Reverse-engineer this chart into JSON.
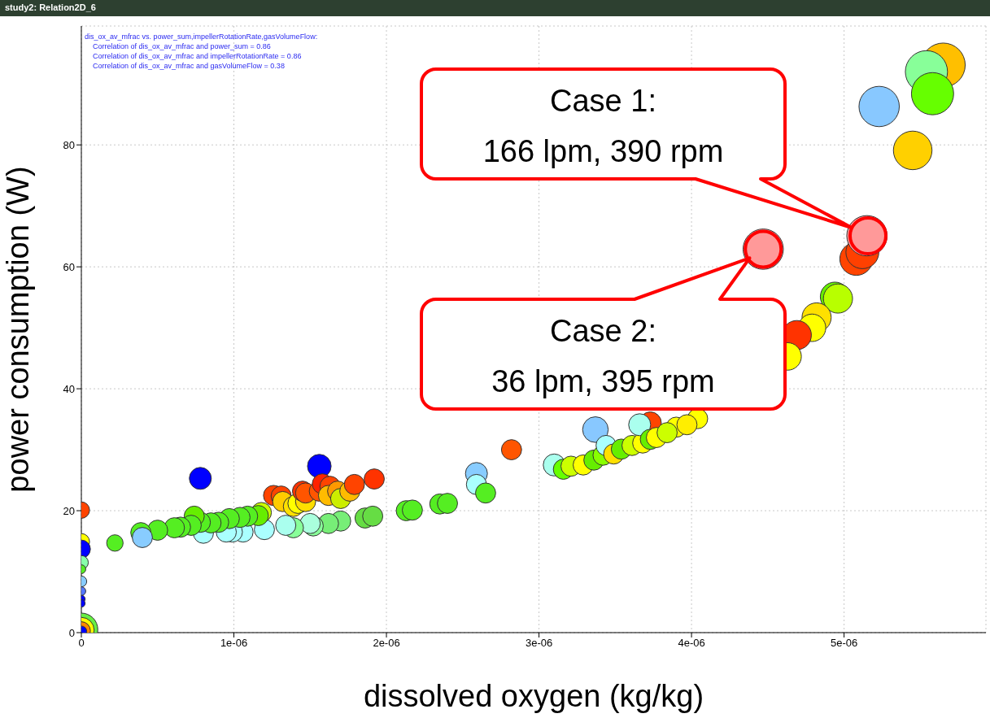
{
  "chart_data": {
    "type": "bubble",
    "title": "study2: Relation2D_6",
    "xlabel": "dissolved oxygen (kg/kg)",
    "ylabel": "power consumption (W)",
    "xlim": [
      0,
      5.93e-06
    ],
    "ylim": [
      0,
      99.5
    ],
    "xticks": [
      0,
      {
        "value": 1e-06,
        "label": "1e-06"
      },
      {
        "value": 2e-06,
        "label": "2e-06"
      },
      {
        "value": 3e-06,
        "label": "3e-06"
      },
      {
        "value": 4e-06,
        "label": "4e-06"
      },
      {
        "value": 5e-06,
        "label": "5e-06"
      }
    ],
    "yticks": [
      0,
      20,
      40,
      60,
      80
    ],
    "grid": true,
    "marker": "circle",
    "x": [
      5.65e-06,
      5.54e-06,
      5.58e-06,
      5.23e-06,
      5.45e-06,
      5.08e-06,
      5.12e-06,
      4.94e-06,
      4.96e-06,
      4.82e-06,
      4.79e-06,
      4.69e-06,
      4.63e-06,
      3.37e-06,
      4.04e-06,
      3.73e-06,
      3.9e-06,
      3.1e-06,
      3.16e-06,
      3.21e-06,
      3.29e-06,
      3.36e-06,
      3.42e-06,
      3.44e-06,
      3.49e-06,
      3.54e-06,
      3.61e-06,
      3.68e-06,
      3.66e-06,
      3.73e-06,
      3.77e-06,
      3.84e-06,
      3.97e-06,
      7.8e-07,
      1.56e-06,
      1.92e-06,
      2.82e-06,
      2.59e-06,
      2.59e-06,
      2.65e-06,
      2.35e-06,
      2.4e-06,
      2.13e-06,
      2.17e-06,
      1.86e-06,
      1.91e-06,
      1.7e-06,
      1.62e-06,
      1.52e-06,
      1.5e-06,
      1.39e-06,
      1.34e-06,
      1.2e-06,
      1.06e-06,
      9.9e-07,
      9.5e-07,
      8e-07,
      1.18e-06,
      1.16e-06,
      1.09e-06,
      1.04e-06,
      9.7e-07,
      9e-07,
      8.5e-07,
      7.8e-07,
      7.4e-07,
      7.2e-07,
      6.5e-07,
      6.1e-07,
      5e-07,
      3.9e-07,
      4e-07,
      2.2e-07,
      1.26e-06,
      1.31e-06,
      1.32e-06,
      1.39e-06,
      1.42e-06,
      1.47e-06,
      1.45e-06,
      1.47e-06,
      1.56e-06,
      1.58e-06,
      1.63e-06,
      1.62e-06,
      1.68e-06,
      1.7e-06,
      1.76e-06,
      1.79e-06,
      0,
      0,
      0,
      0,
      0,
      0,
      0,
      0,
      0,
      0,
      0,
      0,
      0,
      5.15e-06,
      4.47e-06
    ],
    "values": [
      93.1,
      92.0,
      88.4,
      86.3,
      79.1,
      61.3,
      62.4,
      55.1,
      54.8,
      51.7,
      50.0,
      48.8,
      45.3,
      33.3,
      35.1,
      34.4,
      33.7,
      27.5,
      26.8,
      27.3,
      27.5,
      28.3,
      29.1,
      30.7,
      29.3,
      30.1,
      30.7,
      31.1,
      34.1,
      31.7,
      32.0,
      32.8,
      34.1,
      25.3,
      27.3,
      25.2,
      30.0,
      26.1,
      24.3,
      22.9,
      21.1,
      21.2,
      20.0,
      20.1,
      18.8,
      19.1,
      18.3,
      17.9,
      17.5,
      17.9,
      17.2,
      17.6,
      16.9,
      16.5,
      16.5,
      16.5,
      16.3,
      19.7,
      19.2,
      19.1,
      18.9,
      18.7,
      18.1,
      18.0,
      18.1,
      19.1,
      17.6,
      17.3,
      17.2,
      16.8,
      16.4,
      15.6,
      14.7,
      22.5,
      22.4,
      21.5,
      20.7,
      21.2,
      21.5,
      23.2,
      22.9,
      23.2,
      24.4,
      24.0,
      22.5,
      23.2,
      22.0,
      23.2,
      24.3,
      20.1,
      14.9,
      13.7,
      11.5,
      10.4,
      8.4,
      6.8,
      5.5,
      4.8,
      0.5,
      0.4,
      0.3,
      0.2,
      65.1,
      62.9
    ],
    "sizes": [
      1,
      0.92,
      0.92,
      0.84,
      0.77,
      0.56,
      0.56,
      0.44,
      0.44,
      0.44,
      0.39,
      0.44,
      0.39,
      0.34,
      0.21,
      0.25,
      0.21,
      0.25,
      0.21,
      0.21,
      0.21,
      0.21,
      0.21,
      0.21,
      0.21,
      0.21,
      0.21,
      0.21,
      0.25,
      0.21,
      0.21,
      0.21,
      0.21,
      0.25,
      0.29,
      0.21,
      0.21,
      0.25,
      0.21,
      0.21,
      0.21,
      0.21,
      0.21,
      0.21,
      0.21,
      0.21,
      0.21,
      0.21,
      0.21,
      0.21,
      0.21,
      0.21,
      0.21,
      0.21,
      0.21,
      0.21,
      0.21,
      0.21,
      0.21,
      0.21,
      0.21,
      0.21,
      0.21,
      0.21,
      0.21,
      0.21,
      0.21,
      0.21,
      0.21,
      0.21,
      0.21,
      0.21,
      0.14,
      0.21,
      0.21,
      0.21,
      0.21,
      0.21,
      0.21,
      0.21,
      0.21,
      0.21,
      0.21,
      0.21,
      0.21,
      0.21,
      0.21,
      0.21,
      0.21,
      0.14,
      0.14,
      0.17,
      0.1,
      0.04,
      0.06,
      0.04,
      0.03,
      0.03,
      0.56,
      0.34,
      0.17,
      0.06,
      0.84,
      0.84
    ],
    "colors": [
      "#ffbf00",
      "#88ff99",
      "#66ff00",
      "#88c8ff",
      "#ffd000",
      "#ff4400",
      "#ff4000",
      "#66ee00",
      "#b8ff00",
      "#ffe000",
      "#ffff00",
      "#ff3300",
      "#ffff00",
      "#88c8ff",
      "#ffff00",
      "#ff4400",
      "#ffff00",
      "#aaffee",
      "#66ff00",
      "#ccff00",
      "#ffff00",
      "#66ee00",
      "#88ff00",
      "#aaffff",
      "#ffe000",
      "#66ee00",
      "#ccff00",
      "#ffff00",
      "#aaffee",
      "#66ee00",
      "#ffff00",
      "#ccff00",
      "#ffee00",
      "#0000ff",
      "#0000ff",
      "#ff3300",
      "#ff5500",
      "#88ccff",
      "#aaffff",
      "#55ee22",
      "#55ee22",
      "#55ee22",
      "#55ee22",
      "#55ee22",
      "#66dd44",
      "#66dd44",
      "#77ee77",
      "#77ee77",
      "#88ff99",
      "#aaffdd",
      "#88ff99",
      "#aaffee",
      "#aaffff",
      "#aaffff",
      "#aaffff",
      "#aaffff",
      "#aaffff",
      "#ccff00",
      "#66ee00",
      "#55ee22",
      "#55ee22",
      "#55ee22",
      "#55ee22",
      "#55ee22",
      "#55ee22",
      "#66ee00",
      "#55ee22",
      "#55ee22",
      "#55ee22",
      "#55ee22",
      "#55ee22",
      "#88ccff",
      "#55ee22",
      "#ff4400",
      "#ff4400",
      "#ffcc00",
      "#ffe000",
      "#ffff00",
      "#ffdd00",
      "#ff3300",
      "#ff5500",
      "#ff5500",
      "#ff2200",
      "#ff4400",
      "#ffbb00",
      "#ff9900",
      "#ccee00",
      "#ffbb00",
      "#ff4400",
      "#ff4400",
      "#ffff00",
      "#0000ff",
      "#88ffaa",
      "#55ee22",
      "#88ccff",
      "#5577ff",
      "#0000ff",
      "#0000ff",
      "#66ee44",
      "#ffff00",
      "#ff8800",
      "#0000ff",
      "#ff9999",
      "#ff9999"
    ],
    "annotations": [
      "dis_ox_av_mfrac vs. power_sum,impellerRotationRate,gasVolumeFlow:",
      "Correlation of dis_ox_av_mfrac and power_sum = 0.86",
      "Correlation of dis_ox_av_mfrac and impellerRotationRate = 0.86",
      "Correlation of dis_ox_av_mfrac and gasVolumeFlow = 0.38",
      "Case 1:\n166 lpm, 390 rpm",
      {
        "text": "Case 2:\n36 lpm, 395 rpm",
        "x": 4.47e-06,
        "y": 62.9
      }
    ]
  }
}
